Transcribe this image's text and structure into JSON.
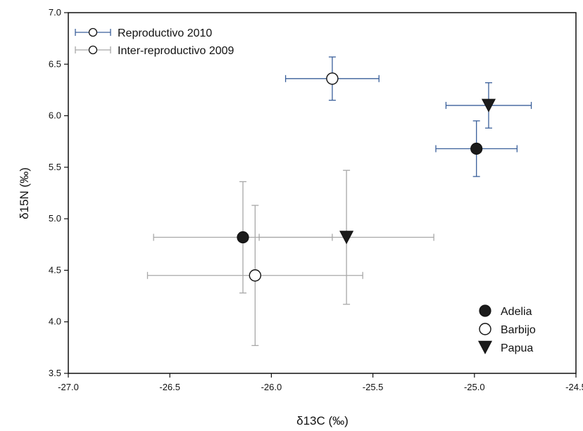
{
  "chart_data": {
    "type": "scatter",
    "title": "",
    "xlabel": "δ13C (‰)",
    "ylabel": "δ15N (‰)",
    "xlim": [
      -27.0,
      -24.5
    ],
    "ylim": [
      3.5,
      7.0
    ],
    "xticks": [
      "-27.0",
      "-26.5",
      "-26.0",
      "-25.5",
      "-25.0",
      "-24.5"
    ],
    "yticks": [
      "3.5",
      "4.0",
      "4.5",
      "5.0",
      "5.5",
      "6.0",
      "6.5",
      "7.0"
    ],
    "grid": false,
    "error_bar_legend": {
      "position": "top-left",
      "entries": [
        {
          "label": "Reproductivo 2010",
          "color": "#3a5f9a"
        },
        {
          "label": "Inter-reproductivo 2009",
          "color": "#a8a8a8"
        }
      ]
    },
    "species_legend": {
      "position": "bottom-right",
      "entries": [
        {
          "label": "Adelia",
          "marker": "filled-circle"
        },
        {
          "label": "Barbijo",
          "marker": "open-circle"
        },
        {
          "label": "Papua",
          "marker": "filled-triangle-down"
        }
      ]
    },
    "series": [
      {
        "period": "Reproductivo 2010",
        "color": "#3a5f9a",
        "points": [
          {
            "species": "Barbijo",
            "marker": "open-circle",
            "x": -25.7,
            "y": 6.36,
            "xerr": 0.23,
            "yerr": 0.21
          },
          {
            "species": "Papua",
            "marker": "filled-triangle-down",
            "x": -24.93,
            "y": 6.1,
            "xerr": 0.21,
            "yerr": 0.22
          },
          {
            "species": "Adelia",
            "marker": "filled-circle",
            "x": -24.99,
            "y": 5.68,
            "xerr": 0.2,
            "yerr": 0.27
          }
        ]
      },
      {
        "period": "Inter-reproductivo 2009",
        "color": "#a8a8a8",
        "points": [
          {
            "species": "Adelia",
            "marker": "filled-circle",
            "x": -26.14,
            "y": 4.82,
            "xerr": 0.44,
            "yerr": 0.54
          },
          {
            "species": "Papua",
            "marker": "filled-triangle-down",
            "x": -25.63,
            "y": 4.82,
            "xerr": 0.43,
            "yerr": 0.65
          },
          {
            "species": "Barbijo",
            "marker": "open-circle",
            "x": -26.08,
            "y": 4.45,
            "xerr": 0.53,
            "yerr": 0.68
          }
        ]
      }
    ]
  }
}
